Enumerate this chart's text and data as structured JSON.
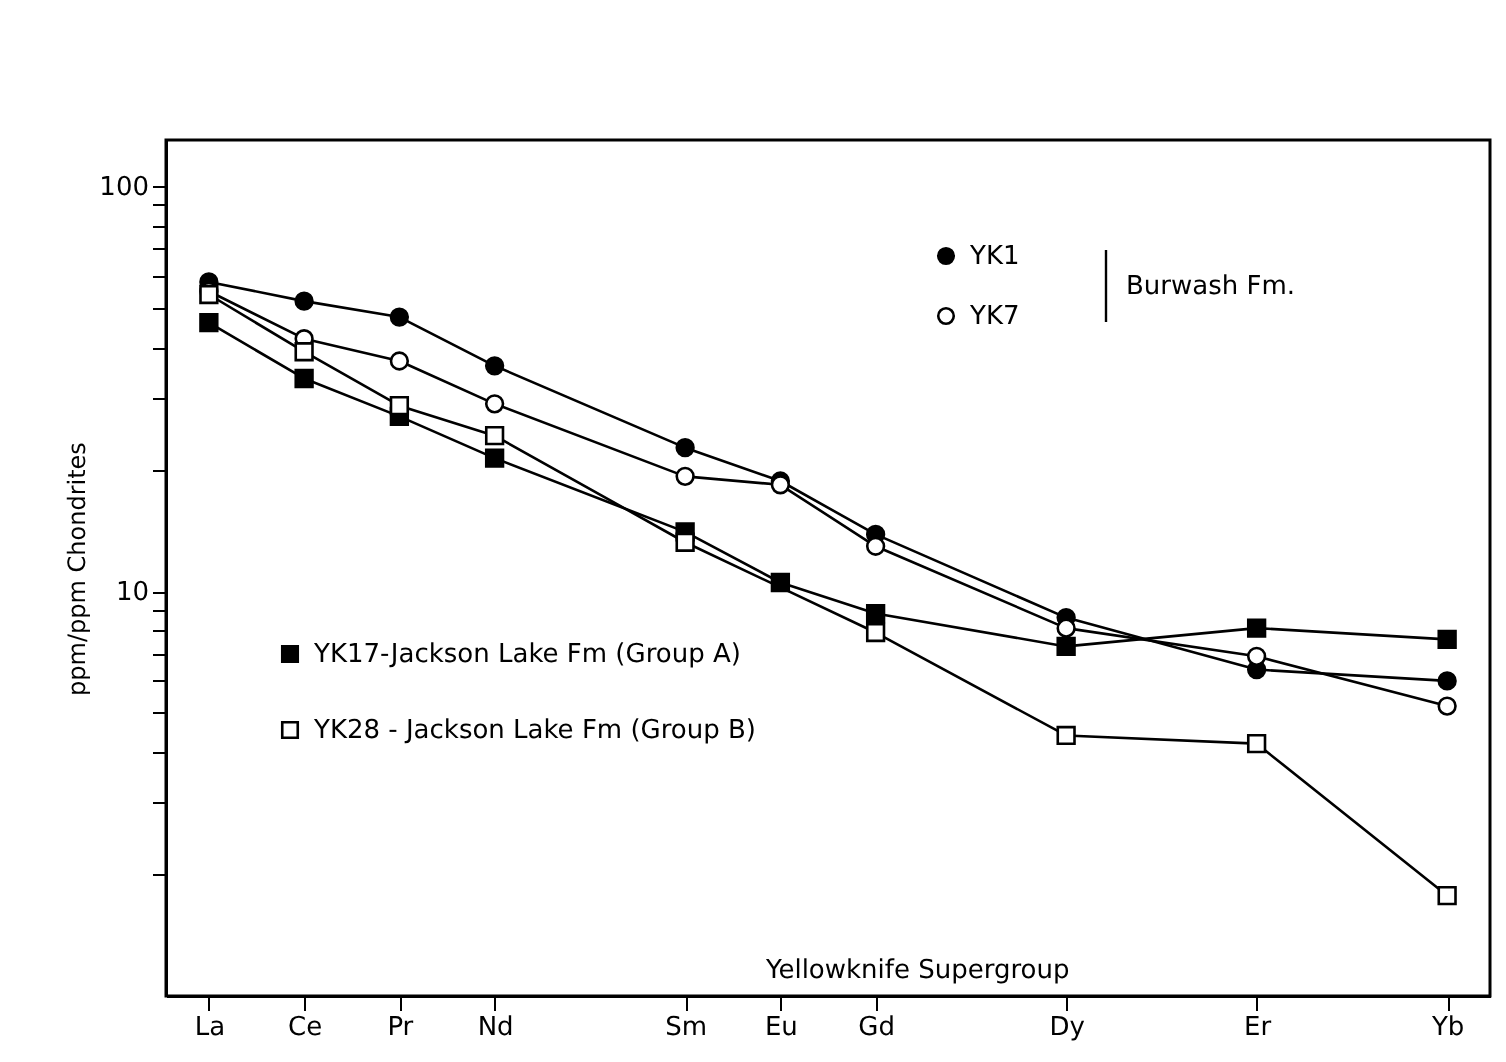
{
  "chart_data": {
    "type": "line",
    "ylabel": "ppm/ppm Chondrites",
    "categories": [
      "La",
      "Ce",
      "Pr",
      "Nd",
      null,
      "Sm",
      "Eu",
      "Gd",
      null,
      "Dy",
      null,
      "Er",
      null,
      "Yb"
    ],
    "series": [
      {
        "name": "YK1",
        "color": "#000000",
        "marker": "circle",
        "values": [
          58,
          52,
          47.5,
          36,
          null,
          22.6,
          18.7,
          13.8,
          null,
          8.6,
          null,
          6.4,
          null,
          6.0
        ]
      },
      {
        "name": "YK7",
        "color": "#000000",
        "marker": "circle-open",
        "values": [
          55,
          42,
          37,
          29,
          null,
          19.2,
          18.3,
          12.9,
          null,
          8.1,
          null,
          6.9,
          null,
          5.2
        ]
      },
      {
        "name": "YK17-Jackson Lake Fm (Group A)",
        "color": "#000000",
        "marker": "square",
        "values": [
          46,
          33.5,
          27,
          21.3,
          null,
          14.0,
          10.5,
          8.8,
          null,
          7.3,
          null,
          8.1,
          null,
          7.6
        ]
      },
      {
        "name": "YK28 - Jackson Lake Fm (Group B)",
        "color": "#000000",
        "marker": "square-open",
        "values": [
          54,
          39,
          28.7,
          24.2,
          null,
          13.2,
          null,
          7.9,
          null,
          4.4,
          null,
          4.2,
          null,
          1.77
        ]
      }
    ],
    "log": true,
    "ylim": [
      1,
      130
    ],
    "yticks": [
      {
        "value": 2,
        "label": null
      },
      {
        "value": 3,
        "label": null
      },
      {
        "value": 4,
        "label": null
      },
      {
        "value": 5,
        "label": null
      },
      {
        "value": 6,
        "label": null
      },
      {
        "value": 7,
        "label": null
      },
      {
        "value": 8,
        "label": null
      },
      {
        "value": 9,
        "label": null
      },
      10,
      {
        "value": 20,
        "label": null
      },
      {
        "value": 30,
        "label": null
      },
      {
        "value": 40,
        "label": null
      },
      {
        "value": 50,
        "label": null
      },
      {
        "value": 60,
        "label": null
      },
      {
        "value": 70,
        "label": null
      },
      {
        "value": 80,
        "label": null
      },
      {
        "value": 90,
        "label": null
      },
      100
    ],
    "annotations": [
      "Burwash Fm.",
      "Yellowknife Supergroup"
    ],
    "legend": "top left",
    "grid": false,
    "line_style": "solid"
  }
}
